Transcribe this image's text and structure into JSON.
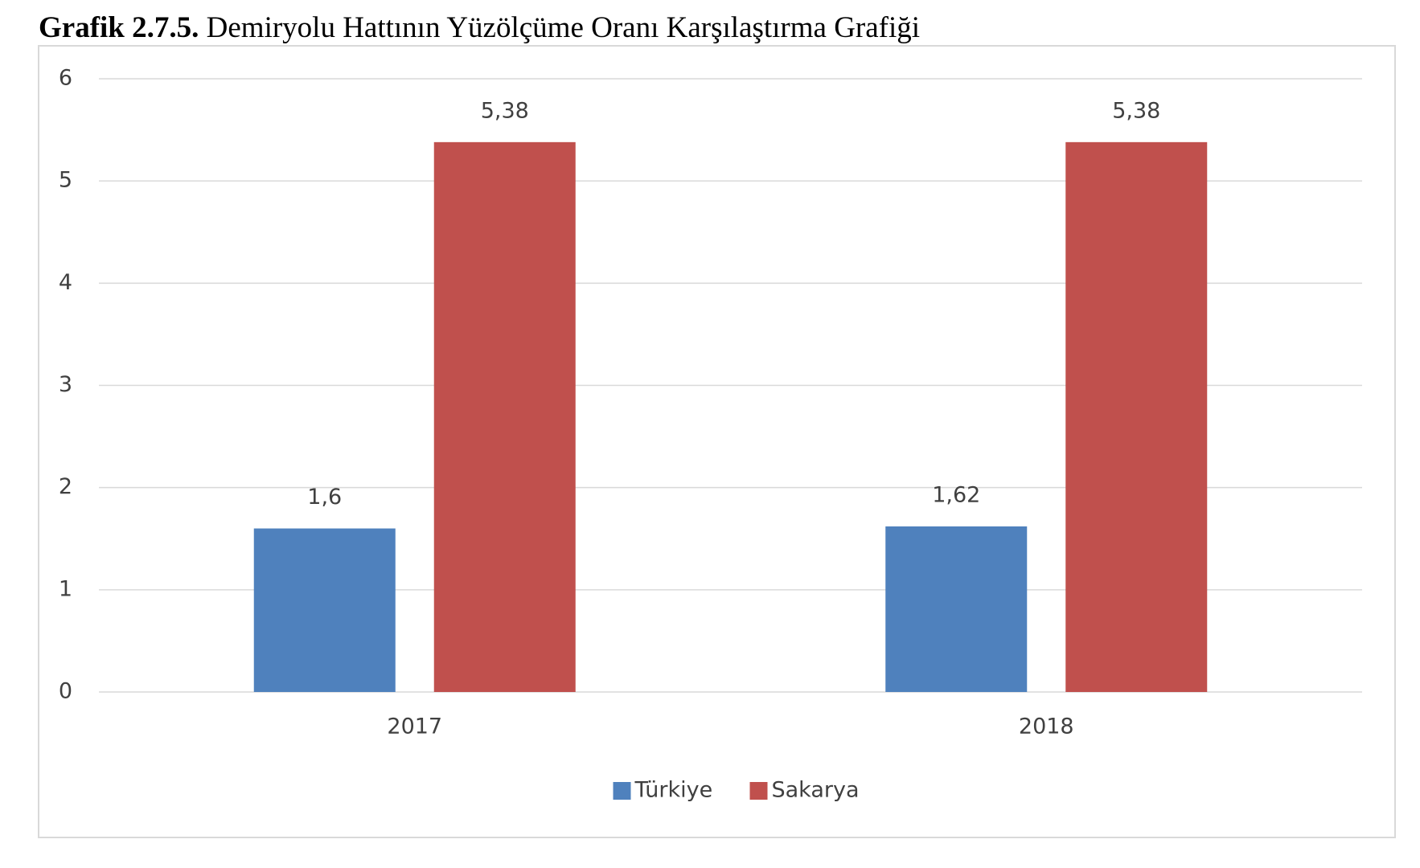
{
  "chart_data": {
    "type": "bar",
    "figure_label": "Grafik 2.7.5.",
    "title": "Demiryolu Hattının Yüzölçüme Oranı Karşılaştırma Grafiği",
    "categories": [
      "2017",
      "2018"
    ],
    "series": [
      {
        "name": "Türkiye",
        "color": "#4f81bd",
        "values": [
          1.6,
          1.62
        ],
        "value_labels": [
          "1,6",
          "1,62"
        ]
      },
      {
        "name": "Sakarya",
        "color": "#c0504d",
        "values": [
          5.38,
          5.38
        ],
        "value_labels": [
          "5,38",
          "5,38"
        ]
      }
    ],
    "ylim": [
      0,
      6
    ],
    "yticks": [
      0,
      1,
      2,
      3,
      4,
      5,
      6
    ],
    "grid": true,
    "legend": "bottom"
  }
}
